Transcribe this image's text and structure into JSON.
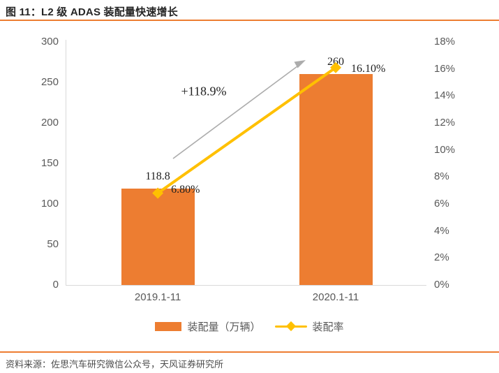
{
  "header": {
    "title": "图 11：L2 级 ADAS 装配量快速增长"
  },
  "footer": {
    "source": "资料来源：佐思汽车研究微信公众号，天风证券研究所"
  },
  "colors": {
    "accent_rule": "#ED7D31",
    "bar": "#ED7D31",
    "line": "#FFC000",
    "arrow": "#ACACAC",
    "axis_line": "#D9D9D9",
    "axis_text": "#595959",
    "data_label_text": "#1F1F1F"
  },
  "chart_data": {
    "type": "bar",
    "subtype": "combo-bar-line",
    "title": "图 11：L2 级 ADAS 装配量快速增长",
    "categories": [
      "2019.1-11",
      "2020.1-11"
    ],
    "series": [
      {
        "name": "装配量（万辆）",
        "chart": "bar",
        "axis": "left",
        "values": [
          118.8,
          260
        ],
        "labels": [
          "118.8",
          "260"
        ],
        "color": "#ED7D31"
      },
      {
        "name": "装配率",
        "chart": "line",
        "axis": "right",
        "values": [
          6.8,
          16.1
        ],
        "labels": [
          "6.80%",
          "16.10%"
        ],
        "color": "#FFC000",
        "marker": "diamond"
      }
    ],
    "left_axis": {
      "min": 0,
      "max": 300,
      "step": 50,
      "tick_labels": [
        "0",
        "50",
        "100",
        "150",
        "200",
        "250",
        "300"
      ]
    },
    "right_axis": {
      "min": 0,
      "max": 18,
      "step": 2,
      "tick_labels": [
        "0%",
        "2%",
        "4%",
        "6%",
        "8%",
        "10%",
        "12%",
        "14%",
        "16%",
        "18%"
      ]
    },
    "annotation": {
      "text": "+118.9%",
      "arrow": true
    },
    "grid": false,
    "legend_position": "bottom"
  }
}
